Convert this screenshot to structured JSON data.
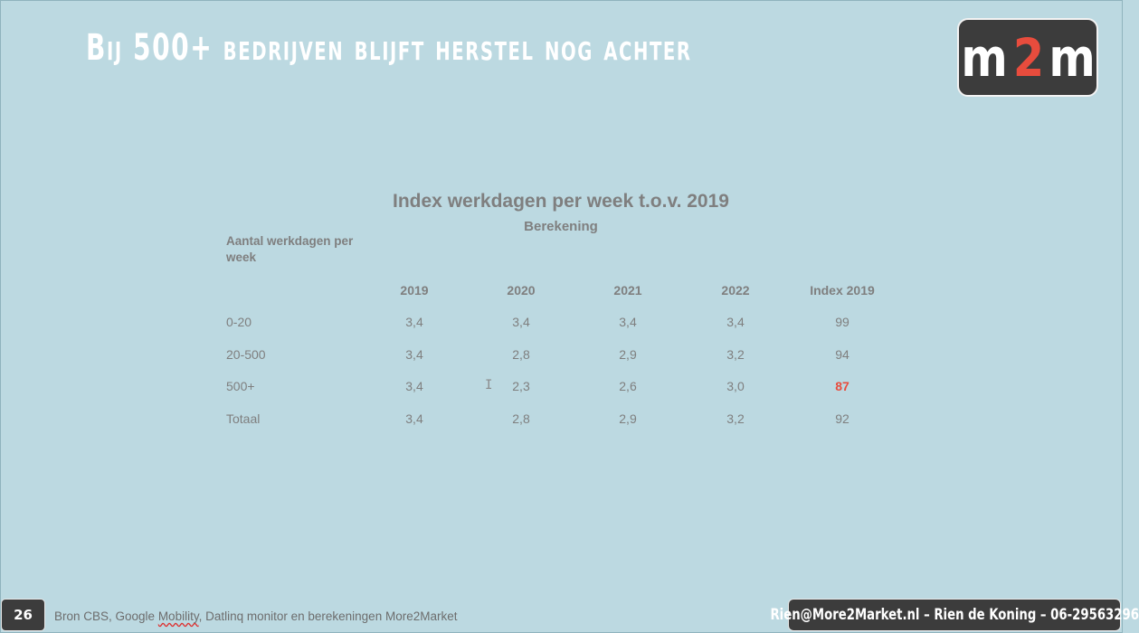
{
  "slide": {
    "title": "Bij 500+ bedrijven blijft herstel nog achter",
    "page_number": "26",
    "logo": {
      "part1": "m",
      "part2": "2",
      "part3": "m"
    },
    "source": {
      "prefix": "Bron CBS, Google ",
      "misspelled": "Mobility",
      "suffix": ", Datlinq monitor en berekeningen More2Market"
    },
    "contact": "Rien@More2Market.nl – Rien de Koning – 06-29563296",
    "colors": {
      "background": "#bcd9e1",
      "badge": "#3c3c3c",
      "accent": "#e84c3d"
    }
  },
  "table": {
    "title": "Index werkdagen per week t.o.v. 2019",
    "subtitle": "Berekening",
    "row_header": "Aantal werkdagen per week",
    "columns": [
      "2019",
      "2020",
      "2021",
      "2022",
      "Index 2019"
    ],
    "rows": [
      {
        "label": "0-20",
        "values": [
          "3,4",
          "3,4",
          "3,4",
          "3,4",
          "99"
        ]
      },
      {
        "label": "20-500",
        "values": [
          "3,4",
          "2,8",
          "2,9",
          "3,2",
          "94"
        ]
      },
      {
        "label": "500+",
        "values": [
          "3,4",
          "2,3",
          "2,6",
          "3,0",
          "87"
        ]
      },
      {
        "label": "Totaal",
        "values": [
          "3,4",
          "2,8",
          "2,9",
          "3,2",
          "92"
        ]
      }
    ],
    "highlighted_value": "87"
  },
  "cursor_glyph": "I"
}
